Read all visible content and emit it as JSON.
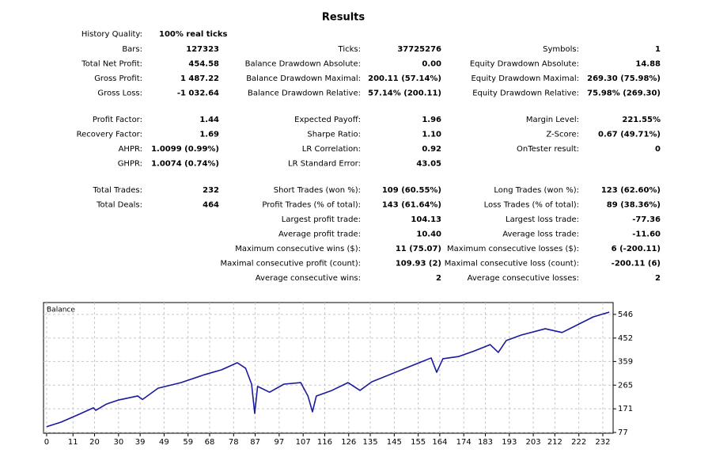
{
  "report": {
    "title": "Results",
    "history_quality": {
      "label": "History Quality:",
      "value": "100% real ticks"
    },
    "sections": [
      [
        [
          {
            "label": "Bars:",
            "value": "127323"
          },
          {
            "label": "Ticks:",
            "value": "37725276"
          },
          {
            "label": "Symbols:",
            "value": "1"
          }
        ],
        [
          {
            "label": "Total Net Profit:",
            "value": "454.58"
          },
          {
            "label": "Balance Drawdown Absolute:",
            "value": "0.00"
          },
          {
            "label": "Equity Drawdown Absolute:",
            "value": "14.88"
          }
        ],
        [
          {
            "label": "Gross Profit:",
            "value": "1 487.22"
          },
          {
            "label": "Balance Drawdown Maximal:",
            "value": "200.11 (57.14%)"
          },
          {
            "label": "Equity Drawdown Maximal:",
            "value": "269.30 (75.98%)"
          }
        ],
        [
          {
            "label": "Gross Loss:",
            "value": "-1 032.64"
          },
          {
            "label": "Balance Drawdown Relative:",
            "value": "57.14% (200.11)"
          },
          {
            "label": "Equity Drawdown Relative:",
            "value": "75.98% (269.30)"
          }
        ]
      ],
      [
        [
          {
            "label": "Profit Factor:",
            "value": "1.44"
          },
          {
            "label": "Expected Payoff:",
            "value": "1.96"
          },
          {
            "label": "Margin Level:",
            "value": "221.55%"
          }
        ],
        [
          {
            "label": "Recovery Factor:",
            "value": "1.69"
          },
          {
            "label": "Sharpe Ratio:",
            "value": "1.10"
          },
          {
            "label": "Z-Score:",
            "value": "0.67 (49.71%)"
          }
        ],
        [
          {
            "label": "AHPR:",
            "value": "1.0099 (0.99%)"
          },
          {
            "label": "LR Correlation:",
            "value": "0.92"
          },
          {
            "label": "OnTester result:",
            "value": "0"
          }
        ],
        [
          {
            "label": "GHPR:",
            "value": "1.0074 (0.74%)"
          },
          {
            "label": "LR Standard Error:",
            "value": "43.05"
          },
          null
        ]
      ],
      [
        [
          {
            "label": "Total Trades:",
            "value": "232"
          },
          {
            "label": "Short Trades (won %):",
            "value": "109 (60.55%)"
          },
          {
            "label": "Long Trades (won %):",
            "value": "123 (62.60%)"
          }
        ],
        [
          {
            "label": "Total Deals:",
            "value": "464"
          },
          {
            "label": "Profit Trades (% of total):",
            "value": "143 (61.64%)"
          },
          {
            "label": "Loss Trades (% of total):",
            "value": "89 (38.36%)"
          }
        ],
        [
          null,
          {
            "label": "Largest profit trade:",
            "value": "104.13"
          },
          {
            "label": "Largest loss trade:",
            "value": "-77.36"
          }
        ],
        [
          null,
          {
            "label": "Average profit trade:",
            "value": "10.40"
          },
          {
            "label": "Average loss trade:",
            "value": "-11.60"
          }
        ],
        [
          null,
          {
            "label": "Maximum consecutive wins ($):",
            "value": "11 (75.07)"
          },
          {
            "label": "Maximum consecutive losses ($):",
            "value": "6 (-200.11)"
          }
        ],
        [
          null,
          {
            "label": "Maximal consecutive profit (count):",
            "value": "109.93 (2)"
          },
          {
            "label": "Maximal consecutive loss (count):",
            "value": "-200.11 (6)"
          }
        ],
        [
          null,
          {
            "label": "Average consecutive wins:",
            "value": "2"
          },
          {
            "label": "Average consecutive losses:",
            "value": "2"
          }
        ]
      ]
    ]
  },
  "chart_data": {
    "type": "line",
    "title": "Balance",
    "color": "#1a1a9c",
    "x": [
      0,
      6,
      13.5,
      19.5,
      20.5,
      25,
      30,
      38,
      40,
      46.5,
      56,
      66,
      73,
      79.5,
      83,
      85.5,
      86.8,
      88,
      93,
      99,
      106,
      109,
      110.9,
      112.5,
      119,
      125.7,
      130.7,
      135.6,
      145.5,
      155.4,
      160.4,
      162.7,
      165.3,
      172,
      178.5,
      185,
      188.4,
      191.7,
      198,
      208,
      215,
      221.5,
      228,
      234.7
    ],
    "values": [
      100,
      118,
      149,
      175,
      165,
      190,
      206,
      222,
      208,
      253,
      275,
      307,
      326,
      354,
      332,
      269,
      153,
      260,
      237,
      269,
      275,
      222,
      159,
      222,
      244,
      275,
      244,
      278,
      316,
      354,
      373,
      316,
      370,
      379,
      401,
      426,
      395,
      442,
      464,
      489,
      474,
      505,
      536,
      555
    ],
    "xlim": [
      -1.3,
      236.3
    ],
    "ylim": [
      74,
      593
    ],
    "xticks": [
      0,
      11,
      20,
      30,
      39,
      49,
      59,
      68,
      78,
      87,
      97,
      107,
      116,
      126,
      135,
      145,
      155,
      164,
      174,
      183,
      193,
      203,
      212,
      222,
      232
    ],
    "yticks": [
      77,
      171,
      265,
      359,
      452,
      546
    ],
    "grid": true
  }
}
